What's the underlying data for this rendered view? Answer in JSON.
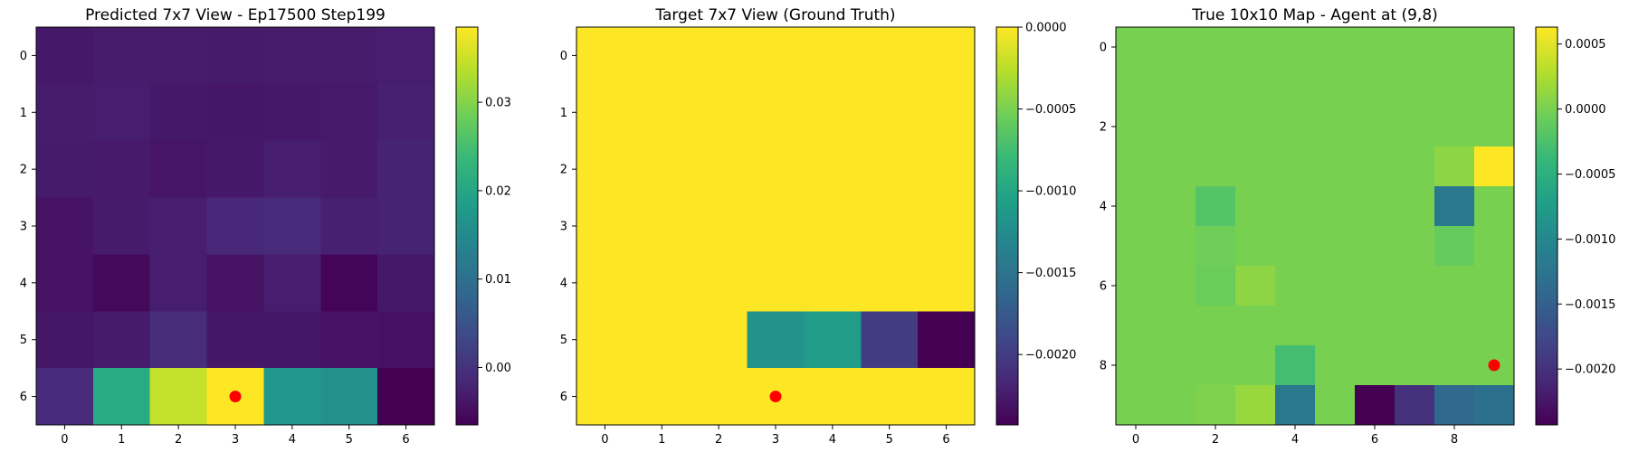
{
  "colormap_stops": [
    "#440154",
    "#482878",
    "#3e4989",
    "#31688e",
    "#26828e",
    "#1f9e89",
    "#35b779",
    "#6ece58",
    "#b5de2b",
    "#fde725"
  ],
  "marker_color": "#ff0000",
  "chart_data": [
    {
      "type": "heatmap",
      "title": "Predicted 7x7 View - Ep17500 Step199",
      "rows": 7,
      "cols": 7,
      "x_ticks": [
        0,
        1,
        2,
        3,
        4,
        5,
        6
      ],
      "y_ticks": [
        0,
        1,
        2,
        3,
        4,
        5,
        6
      ],
      "vmin": -0.0065,
      "vmax": 0.0385,
      "values": [
        [
          -0.0035,
          -0.003,
          -0.003,
          -0.0032,
          -0.003,
          -0.003,
          -0.0028
        ],
        [
          -0.003,
          -0.0028,
          -0.0035,
          -0.0038,
          -0.0036,
          -0.0034,
          -0.0025
        ],
        [
          -0.0032,
          -0.0033,
          -0.004,
          -0.0036,
          -0.0028,
          -0.0033,
          -0.0022
        ],
        [
          -0.0042,
          -0.0032,
          -0.0028,
          -0.0015,
          -0.0012,
          -0.0025,
          -0.0022
        ],
        [
          -0.0042,
          -0.0055,
          -0.0028,
          -0.0042,
          -0.0028,
          -0.006,
          -0.0035
        ],
        [
          -0.0038,
          -0.0032,
          -0.0008,
          -0.0038,
          -0.0038,
          -0.0042,
          -0.0045
        ],
        [
          -0.001,
          0.021,
          0.0345,
          0.0385,
          0.017,
          0.016,
          -0.0065
        ]
      ],
      "colorbar_ticks": [
        0.03,
        0.02,
        0.01,
        0.0
      ],
      "colorbar_tick_labels": [
        "0.03",
        "0.02",
        "0.01",
        "0.00"
      ],
      "marker": {
        "x": 3,
        "y": 6
      }
    },
    {
      "type": "heatmap",
      "title": "Target 7x7 View (Ground Truth)",
      "rows": 7,
      "cols": 7,
      "x_ticks": [
        0,
        1,
        2,
        3,
        4,
        5,
        6
      ],
      "y_ticks": [
        0,
        1,
        2,
        3,
        4,
        5,
        6
      ],
      "vmin": -0.00243,
      "vmax": 0.0,
      "values": [
        [
          0,
          0,
          0,
          0,
          0,
          0,
          0
        ],
        [
          0,
          0,
          0,
          0,
          0,
          0,
          0
        ],
        [
          0,
          0,
          0,
          0,
          0,
          0,
          0
        ],
        [
          0,
          0,
          0,
          0,
          0,
          0,
          0
        ],
        [
          0,
          0,
          0,
          0,
          0,
          0,
          0
        ],
        [
          0,
          0,
          0,
          -0.0012,
          -0.0011,
          -0.002,
          -0.00243
        ],
        [
          0,
          0,
          0,
          0,
          0,
          0,
          0
        ]
      ],
      "colorbar_ticks": [
        0.0,
        -0.0005,
        -0.001,
        -0.0015,
        -0.002
      ],
      "colorbar_tick_labels": [
        "0.0000",
        "−0.0005",
        "−0.0010",
        "−0.0015",
        "−0.0020"
      ],
      "marker": {
        "x": 3,
        "y": 6
      }
    },
    {
      "type": "heatmap",
      "title": "True 10x10 Map - Agent at (9,8)",
      "rows": 10,
      "cols": 10,
      "x_ticks": [
        0,
        2,
        4,
        6,
        8
      ],
      "y_ticks": [
        0,
        2,
        4,
        6,
        8
      ],
      "vmin": -0.00243,
      "vmax": 0.00063,
      "values": [
        [
          0,
          0,
          0,
          0,
          0,
          0,
          0,
          0,
          0,
          0
        ],
        [
          0,
          0,
          0,
          0,
          0,
          0,
          0,
          0,
          0,
          0
        ],
        [
          0,
          0,
          0,
          0,
          0,
          0,
          0,
          0,
          0,
          0
        ],
        [
          0,
          0,
          0,
          0,
          0,
          0,
          0,
          0,
          0.0001,
          0.00063
        ],
        [
          0,
          0,
          -0.0002,
          0,
          0,
          0,
          0,
          0,
          -0.0012,
          0
        ],
        [
          0,
          0,
          -5e-05,
          0,
          0,
          0,
          0,
          0,
          -0.0001,
          0
        ],
        [
          0,
          0,
          -8e-05,
          0.0001,
          0,
          0,
          0,
          0,
          0,
          0
        ],
        [
          0,
          0,
          0,
          0,
          0,
          0,
          0,
          0,
          0,
          0
        ],
        [
          0,
          0,
          0,
          0,
          -0.0003,
          0,
          0,
          0,
          0,
          0
        ],
        [
          0,
          0,
          3e-05,
          0.00015,
          -0.0012,
          0,
          -0.00243,
          -0.002,
          -0.0014,
          -0.0013
        ]
      ],
      "colorbar_ticks": [
        0.0005,
        0.0,
        -0.0005,
        -0.001,
        -0.0015,
        -0.002
      ],
      "colorbar_tick_labels": [
        "0.0005",
        "0.0000",
        "−0.0005",
        "−0.0010",
        "−0.0015",
        "−0.0020"
      ],
      "marker": {
        "x": 9,
        "y": 8
      }
    }
  ]
}
